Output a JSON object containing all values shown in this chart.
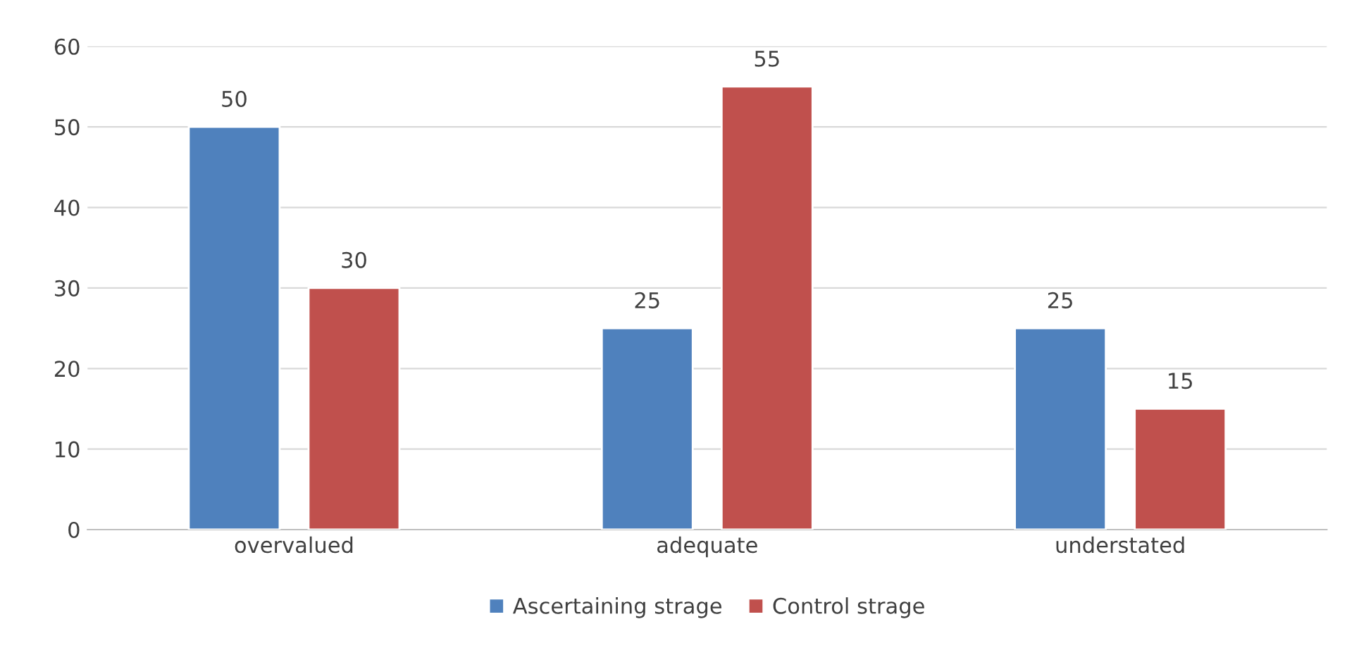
{
  "chart_data": {
    "type": "bar",
    "categories": [
      "overvalued",
      "adequate",
      "understated"
    ],
    "series": [
      {
        "name": "Ascertaining strage",
        "color": "#4f81bd",
        "values": [
          50,
          25,
          25
        ]
      },
      {
        "name": "Control strage",
        "color": "#c0504d",
        "values": [
          30,
          55,
          15
        ]
      }
    ],
    "ylim": [
      0,
      60
    ],
    "yticks": [
      0,
      10,
      20,
      30,
      40,
      50,
      60
    ],
    "grid": "y",
    "legend": "bottom",
    "data_labels": true
  }
}
